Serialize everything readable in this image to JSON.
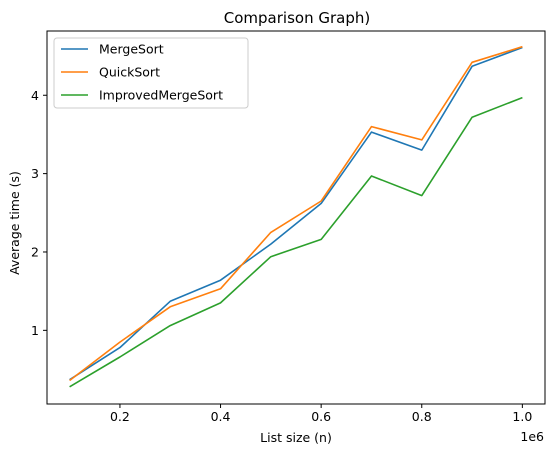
{
  "chart_data": {
    "type": "line",
    "title": "Comparison Graph)",
    "xlabel": "List size (n)",
    "ylabel": "Average time (s)",
    "x_offset_label": "1e6",
    "x": [
      100000,
      200000,
      300000,
      400000,
      500000,
      600000,
      700000,
      800000,
      900000,
      1000000
    ],
    "xlim": [
      55000,
      1045000
    ],
    "ylim": [
      0.06,
      4.82
    ],
    "x_ticks": [
      200000,
      400000,
      600000,
      800000,
      1000000
    ],
    "x_tick_labels": [
      "0.2",
      "0.4",
      "0.6",
      "0.8",
      "1.0"
    ],
    "y_ticks": [
      1,
      2,
      3,
      4
    ],
    "y_tick_labels": [
      "1",
      "2",
      "3",
      "4"
    ],
    "legend_position": "top-left",
    "grid": false,
    "series": [
      {
        "name": "MergeSort",
        "color": "#1f77b4",
        "values": [
          0.37,
          0.78,
          1.37,
          1.64,
          2.1,
          2.62,
          3.53,
          3.3,
          4.37,
          4.61
        ]
      },
      {
        "name": "QuickSort",
        "color": "#ff7f0e",
        "values": [
          0.36,
          0.85,
          1.3,
          1.53,
          2.25,
          2.65,
          3.6,
          3.43,
          4.42,
          4.62
        ]
      },
      {
        "name": "ImprovedMergeSort",
        "color": "#2ca02c",
        "values": [
          0.28,
          0.66,
          1.06,
          1.35,
          1.94,
          2.16,
          2.97,
          2.72,
          3.72,
          3.97
        ]
      }
    ]
  }
}
